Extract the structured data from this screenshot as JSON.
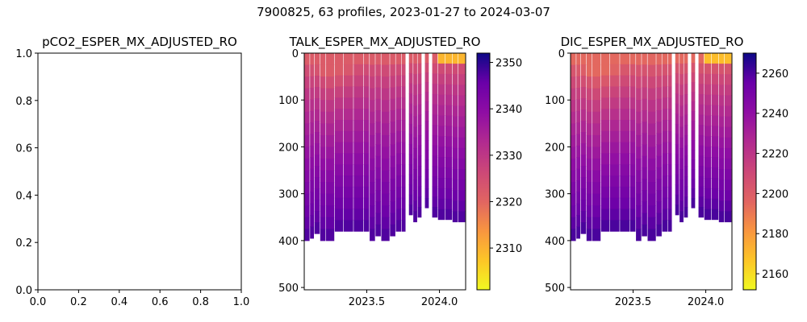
{
  "suptitle": "7900825, 63 profiles, 2023-01-27 to 2024-03-07",
  "colors": {
    "axis": "#000000",
    "background": "#ffffff",
    "colormap": "plasma"
  },
  "chart_data": [
    {
      "type": "line",
      "title": "pCO2_ESPER_MX_ADJUSTED_RO",
      "xlim": [
        0,
        1
      ],
      "ylim": [
        0,
        1
      ],
      "x_ticks": [
        "0.0",
        "0.2",
        "0.4",
        "0.6",
        "0.8",
        "1.0"
      ],
      "y_ticks": [
        "0.0",
        "0.2",
        "0.4",
        "0.6",
        "0.8",
        "1.0"
      ],
      "series": []
    },
    {
      "type": "heatmap",
      "title": "TALK_ESPER_MX_ADJUSTED_RO",
      "x_ticks": [
        "2023.5",
        "2024.0"
      ],
      "y_ticks": [
        "0",
        "100",
        "200",
        "300",
        "400",
        "500"
      ],
      "y_inverted": true,
      "colorbar": {
        "min": 2301,
        "max": 2352,
        "ticks": [
          "2310",
          "2320",
          "2330",
          "2340",
          "2350"
        ]
      },
      "surface_value": 2322,
      "deep_value": 2348
    },
    {
      "type": "heatmap",
      "title": "DIC_ESPER_MX_ADJUSTED_RO",
      "x_ticks": [
        "2023.5",
        "2024.0"
      ],
      "y_ticks": [
        "0",
        "100",
        "200",
        "300",
        "400",
        "500"
      ],
      "y_inverted": true,
      "colorbar": {
        "min": 2152,
        "max": 2270,
        "ticks": [
          "2160",
          "2180",
          "2200",
          "2220",
          "2240",
          "2260"
        ]
      },
      "surface_value": 2195,
      "deep_value": 2262
    }
  ]
}
